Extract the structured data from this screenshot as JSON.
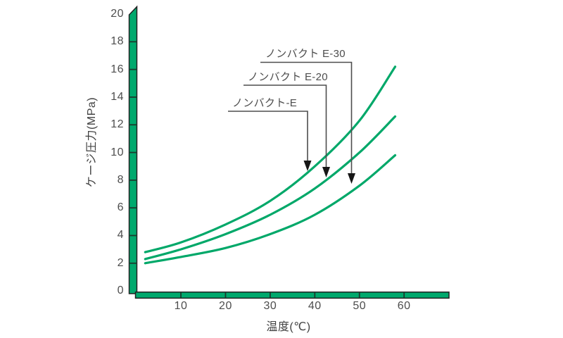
{
  "chart_data": {
    "type": "line",
    "title": "",
    "xlabel": "温度(℃)",
    "ylabel": "ケージ圧力(MPa)",
    "xlim": [
      0,
      70
    ],
    "ylim": [
      0,
      20
    ],
    "x_ticks": [
      10,
      20,
      30,
      40,
      50,
      60
    ],
    "y_ticks": [
      0,
      2,
      4,
      6,
      8,
      10,
      12,
      14,
      16,
      18,
      20
    ],
    "grid": false,
    "legend_position": "inline-arrow-annotations",
    "series": [
      {
        "name": "ノンバクト-E",
        "x": [
          2,
          10,
          20,
          30,
          40,
          50,
          58
        ],
        "y": [
          2.8,
          3.5,
          4.8,
          6.5,
          9.0,
          12.3,
          16.2
        ]
      },
      {
        "name": "ノンバクト E-20",
        "x": [
          2,
          10,
          20,
          30,
          40,
          50,
          58
        ],
        "y": [
          2.3,
          3.0,
          4.1,
          5.5,
          7.4,
          10.0,
          12.6
        ]
      },
      {
        "name": "ノンバクト E-30",
        "x": [
          2,
          10,
          20,
          30,
          40,
          50,
          58
        ],
        "y": [
          2.0,
          2.45,
          3.1,
          4.1,
          5.5,
          7.6,
          9.8
        ]
      }
    ],
    "colors": {
      "curve": "#00a869",
      "axis_bar_fill": "#00a96d",
      "axis_bar_outline": "#222222",
      "tick_mark": "#1c3b2e",
      "text": "#4d4d4d",
      "annotation_line": "#4d4d4d",
      "arrowhead": "#161616"
    }
  }
}
